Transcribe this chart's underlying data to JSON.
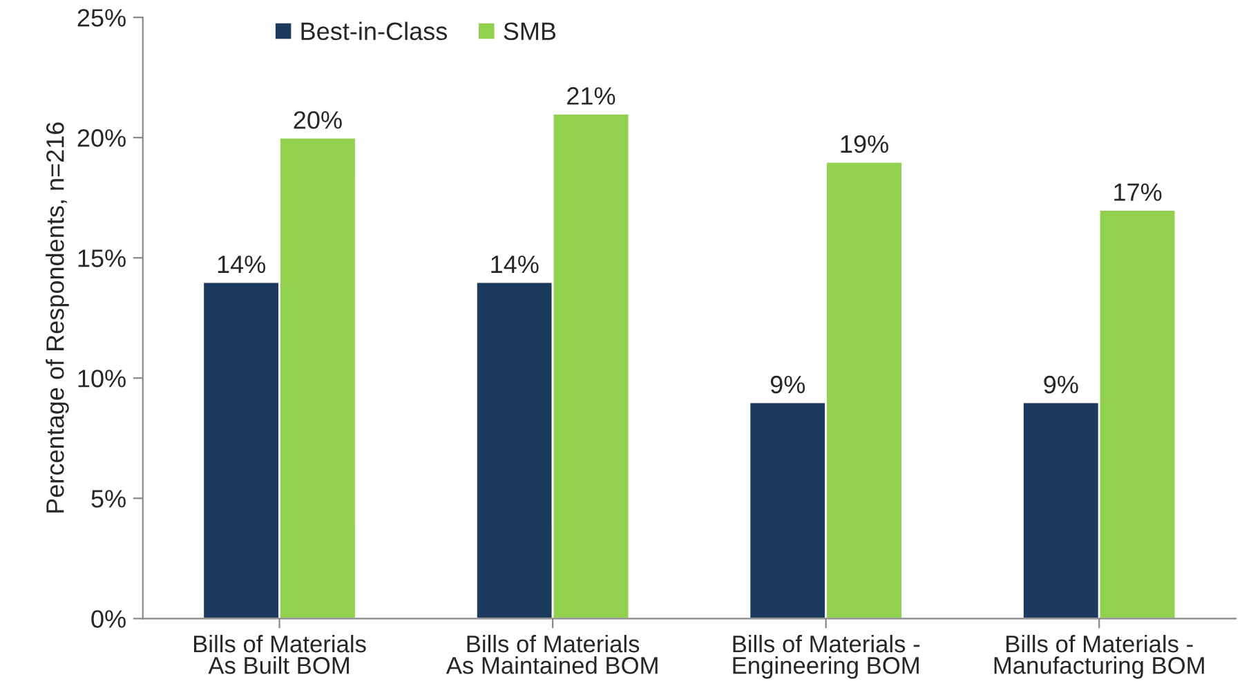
{
  "chart_data": {
    "type": "bar",
    "ylabel": "Percentage of Respondents, n=216",
    "categories": [
      "Bills of Materials\nAs Built BOM",
      "Bills of Materials\nAs Maintained BOM",
      "Bills of Materials -\nEngineering BOM",
      "Bills of Materials -\nManufacturing BOM"
    ],
    "series": [
      {
        "name": "Best-in-Class",
        "color": "#1c3a5e",
        "values": [
          14,
          14,
          9,
          9
        ],
        "value_labels": [
          "14%",
          "14%",
          "9%",
          "9%"
        ]
      },
      {
        "name": "SMB",
        "color": "#92d050",
        "values": [
          20,
          21,
          19,
          17
        ],
        "value_labels": [
          "20%",
          "21%",
          "19%",
          "17%"
        ]
      }
    ],
    "ylim": [
      0,
      25
    ],
    "yticks": [
      {
        "value": 0,
        "label": "0%"
      },
      {
        "value": 5,
        "label": "5%"
      },
      {
        "value": 10,
        "label": "10%"
      },
      {
        "value": 15,
        "label": "15%"
      },
      {
        "value": 20,
        "label": "20%"
      },
      {
        "value": 25,
        "label": "25%"
      }
    ],
    "grid": false,
    "legend": "top left"
  }
}
